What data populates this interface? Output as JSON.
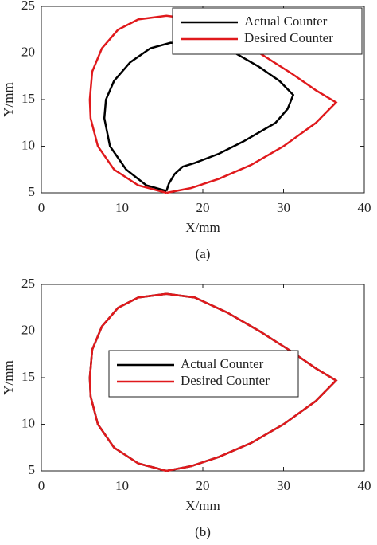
{
  "chart_data": [
    {
      "type": "line",
      "caption": "(a)",
      "xlabel": "X/mm",
      "ylabel": "Y/mm",
      "xlim": [
        0,
        40
      ],
      "ylim": [
        5,
        25
      ],
      "xticks": [
        0,
        10,
        20,
        30,
        40
      ],
      "yticks": [
        5,
        10,
        15,
        20,
        25
      ],
      "legend": "upper right",
      "series": [
        {
          "name": "Actual Counter",
          "color": "#000000",
          "x": [
            15.5,
            15.8,
            16.5,
            17.5,
            19,
            22,
            25,
            29,
            30.5,
            31.2,
            29.5,
            27,
            24,
            20,
            16,
            13.5,
            11,
            9,
            8,
            7.8,
            8.5,
            10.5,
            13,
            15.5
          ],
          "values": [
            5.2,
            6,
            7,
            7.8,
            8.2,
            9.2,
            10.5,
            12.5,
            14,
            15.5,
            17,
            18.5,
            20,
            21,
            21.1,
            20.5,
            19,
            17,
            15,
            13,
            10,
            7.5,
            5.8,
            5.2
          ]
        },
        {
          "name": "Desired Counter",
          "color": "#e0191c",
          "x": [
            15.5,
            12,
            9,
            7,
            6.1,
            6,
            6.3,
            7.5,
            9.5,
            12,
            15.5,
            19,
            23,
            27,
            31,
            34,
            36.5,
            34,
            30,
            26,
            22,
            18.5,
            15.5
          ],
          "values": [
            5,
            5.8,
            7.5,
            10,
            13,
            15,
            18,
            20.5,
            22.5,
            23.6,
            24,
            23.6,
            22,
            20,
            17.8,
            16,
            14.7,
            12.5,
            10,
            8,
            6.5,
            5.5,
            5
          ]
        }
      ]
    },
    {
      "type": "line",
      "caption": "(b)",
      "xlabel": "X/mm",
      "ylabel": "Y/mm",
      "xlim": [
        0,
        40
      ],
      "ylim": [
        5,
        25
      ],
      "xticks": [
        0,
        10,
        20,
        30,
        40
      ],
      "yticks": [
        5,
        10,
        15,
        20,
        25
      ],
      "legend": "center",
      "series": [
        {
          "name": "Actual Counter",
          "color": "#000000",
          "x": [
            15.5,
            12,
            9,
            7,
            6.1,
            6,
            6.3,
            7.5,
            9.5,
            12,
            15.5,
            19,
            23,
            27,
            31,
            34,
            36.5,
            34,
            30,
            26,
            22,
            18.5,
            15.5
          ],
          "values": [
            5,
            5.8,
            7.5,
            10,
            13,
            15,
            18,
            20.5,
            22.5,
            23.6,
            24,
            23.6,
            22,
            20,
            17.8,
            16,
            14.7,
            12.5,
            10,
            8,
            6.5,
            5.5,
            5
          ]
        },
        {
          "name": "Desired Counter",
          "color": "#e0191c",
          "x": [
            15.5,
            12,
            9,
            7,
            6.1,
            6,
            6.3,
            7.5,
            9.5,
            12,
            15.5,
            19,
            23,
            27,
            31,
            34,
            36.5,
            34,
            30,
            26,
            22,
            18.5,
            15.5
          ],
          "values": [
            5,
            5.8,
            7.5,
            10,
            13,
            15,
            18,
            20.5,
            22.5,
            23.6,
            24,
            23.6,
            22,
            20,
            17.8,
            16,
            14.7,
            12.5,
            10,
            8,
            6.5,
            5.5,
            5
          ]
        }
      ]
    }
  ]
}
